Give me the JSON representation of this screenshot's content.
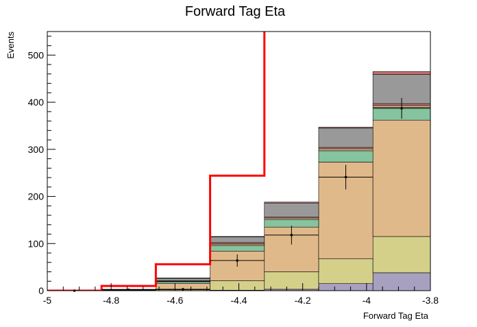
{
  "chart_data": {
    "type": "bar",
    "title": "Forward Tag Eta",
    "xlabel": "Forward Tag Eta",
    "ylabel": "Events",
    "xlim": [
      -5,
      -3.8
    ],
    "ylim": [
      0,
      550
    ],
    "x_edges": [
      -5.0,
      -4.83,
      -4.66,
      -4.49,
      -4.32,
      -4.15,
      -3.98,
      -3.8
    ],
    "x_ticks": [
      -5,
      -4.8,
      -4.6,
      -4.4,
      -4.2,
      -4,
      -3.8
    ],
    "x_tick_labels": [
      "-5",
      "-4.8",
      "-4.6",
      "-4.4",
      "-4.2",
      "-4",
      "-3.8"
    ],
    "y_ticks": [
      0,
      100,
      200,
      300,
      400,
      500
    ],
    "y_tick_labels": [
      "0",
      "100",
      "200",
      "300",
      "400",
      "500"
    ],
    "grid": false,
    "stack": [
      {
        "color": "#a7a0bf",
        "values": [
          0,
          0,
          0,
          1,
          3,
          15,
          38
        ]
      },
      {
        "color": "#d4d08a",
        "values": [
          0,
          1,
          2,
          20,
          37,
          53,
          77
        ]
      },
      {
        "color": "#e0b98a",
        "values": [
          0,
          1,
          13,
          63,
          95,
          205,
          247
        ]
      },
      {
        "color": "#86c39f",
        "values": [
          0,
          0,
          4,
          12,
          16,
          24,
          27
        ]
      },
      {
        "color": "#e0b98a",
        "values": [
          0,
          0,
          1,
          3,
          3,
          4,
          4
        ]
      },
      {
        "color": "#c6716f",
        "values": [
          0,
          0,
          1,
          3,
          2,
          3,
          4
        ]
      },
      {
        "color": "#999999",
        "values": [
          0,
          1,
          5,
          12,
          30,
          41,
          62
        ]
      },
      {
        "color": "#c6716f",
        "values": [
          0,
          0,
          1,
          1,
          2,
          2,
          6
        ]
      }
    ],
    "data_points": {
      "x": [
        -4.915,
        -4.745,
        -4.575,
        -4.405,
        -4.235,
        -4.065,
        -3.89
      ],
      "y": [
        0,
        2,
        3,
        64,
        118,
        241,
        387
      ],
      "yerr": [
        0,
        1.5,
        2,
        13,
        20,
        26,
        22
      ]
    },
    "signal": {
      "color": "#ff0000",
      "values": [
        0,
        10,
        56,
        244,
        560,
        560,
        560
      ]
    }
  }
}
